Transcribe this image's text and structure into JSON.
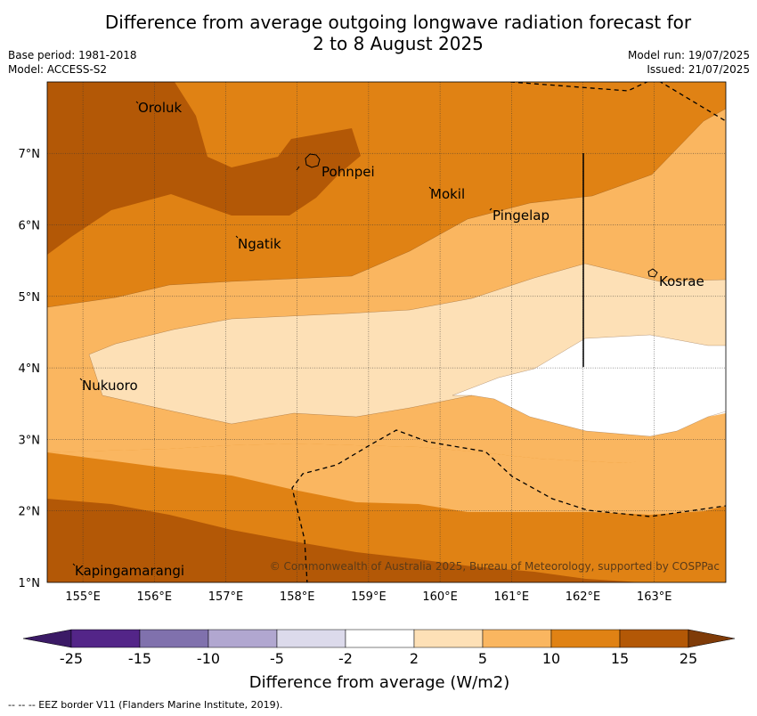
{
  "title_line1": "Difference from average outgoing longwave radiation forecast for",
  "title_line2": "2 to 8 August 2025",
  "base_period": "Base period: 1981-2018",
  "model": "Model: ACCESS-S2",
  "model_run": "Model run: 19/07/2025",
  "issued": "Issued: 21/07/2025",
  "copyright": "© Commonwealth of Australia 2025, Bureau of Meteorology, supported by COSPPac",
  "footnote": "--  --  -- EEZ border V11 (Flanders Marine Institute, 2019).",
  "colorbar_label": "Difference from average (W/m2)",
  "lat_labels": [
    "1°N",
    "2°N",
    "3°N",
    "4°N",
    "5°N",
    "6°N",
    "7°N"
  ],
  "lon_labels": [
    "155°E",
    "156°E",
    "157°E",
    "158°E",
    "159°E",
    "160°E",
    "161°E",
    "162°E",
    "163°E"
  ],
  "colorbar_ticks": [
    "-25",
    "-15",
    "-10",
    "-5",
    "-2",
    "2",
    "5",
    "10",
    "15",
    "25"
  ],
  "colorbar_colors": [
    "#3b1a66",
    "#532588",
    "#8071ad",
    "#b1a7d0",
    "#dcdaeb",
    "#ffffff",
    "#fde0b6",
    "#fab660",
    "#e08214",
    "#b35806",
    "#7f3b08"
  ],
  "map_colors": {
    "band_15_25": "#b35806",
    "band_10_15": "#e08214",
    "band_5_10": "#fab660",
    "band_2_5": "#fde0b6",
    "band_neg2_2": "#ffffff"
  },
  "places": [
    {
      "name": "Oroluk"
    },
    {
      "name": "Pohnpei"
    },
    {
      "name": "Mokil"
    },
    {
      "name": "Pingelap"
    },
    {
      "name": "Ngatik"
    },
    {
      "name": "Kosrae"
    },
    {
      "name": "Nukuoro"
    },
    {
      "name": "Kapingamarangi"
    }
  ]
}
